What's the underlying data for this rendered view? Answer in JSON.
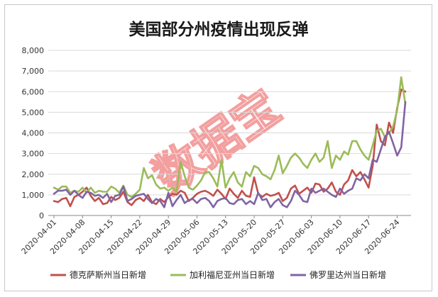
{
  "chart_data": {
    "type": "line",
    "title": "美国部分州疫情出现反弹",
    "watermark": "数据宝",
    "ylim": [
      0,
      8000
    ],
    "y_ticks": [
      "0",
      "1,000",
      "2,000",
      "3,000",
      "4,000",
      "5,000",
      "6,000",
      "7,000",
      "8,000"
    ],
    "y_tick_values": [
      0,
      1000,
      2000,
      3000,
      4000,
      5000,
      6000,
      7000,
      8000
    ],
    "x_tick_labels": [
      "2020-04-01",
      "2020-04-08",
      "2020-04-15",
      "2020-04-22",
      "2020-04-29",
      "2020-05-06",
      "2020-05-13",
      "2020-05-20",
      "2020-05-27",
      "2020-06-03",
      "2020-06-10",
      "2020-06-17",
      "2020-06-24"
    ],
    "x": [
      "2020-04-01",
      "2020-04-02",
      "2020-04-03",
      "2020-04-04",
      "2020-04-05",
      "2020-04-06",
      "2020-04-07",
      "2020-04-08",
      "2020-04-09",
      "2020-04-10",
      "2020-04-11",
      "2020-04-12",
      "2020-04-13",
      "2020-04-14",
      "2020-04-15",
      "2020-04-16",
      "2020-04-17",
      "2020-04-18",
      "2020-04-19",
      "2020-04-20",
      "2020-04-21",
      "2020-04-22",
      "2020-04-23",
      "2020-04-24",
      "2020-04-25",
      "2020-04-26",
      "2020-04-27",
      "2020-04-28",
      "2020-04-29",
      "2020-04-30",
      "2020-05-01",
      "2020-05-02",
      "2020-05-03",
      "2020-05-04",
      "2020-05-05",
      "2020-05-06",
      "2020-05-07",
      "2020-05-08",
      "2020-05-09",
      "2020-05-10",
      "2020-05-11",
      "2020-05-12",
      "2020-05-13",
      "2020-05-14",
      "2020-05-15",
      "2020-05-16",
      "2020-05-17",
      "2020-05-18",
      "2020-05-19",
      "2020-05-20",
      "2020-05-21",
      "2020-05-22",
      "2020-05-23",
      "2020-05-24",
      "2020-05-25",
      "2020-05-26",
      "2020-05-27",
      "2020-05-28",
      "2020-05-29",
      "2020-05-30",
      "2020-05-31",
      "2020-06-01",
      "2020-06-02",
      "2020-06-03",
      "2020-06-04",
      "2020-06-05",
      "2020-06-06",
      "2020-06-07",
      "2020-06-08",
      "2020-06-09",
      "2020-06-10",
      "2020-06-11",
      "2020-06-12",
      "2020-06-13",
      "2020-06-14",
      "2020-06-15",
      "2020-06-16",
      "2020-06-17",
      "2020-06-18",
      "2020-06-19",
      "2020-06-20",
      "2020-06-21",
      "2020-06-22",
      "2020-06-23",
      "2020-06-24",
      "2020-06-25",
      "2020-06-26"
    ],
    "series": [
      {
        "name": "德克萨斯州当日新增",
        "color": "#c0504d",
        "values": [
          700,
          650,
          800,
          850,
          450,
          900,
          1000,
          1150,
          1350,
          950,
          700,
          850,
          550,
          600,
          900,
          750,
          850,
          1150,
          650,
          500,
          750,
          850,
          700,
          1000,
          650,
          550,
          800,
          650,
          900,
          1050,
          1000,
          1200,
          1100,
          700,
          850,
          1050,
          1150,
          1200,
          1100,
          950,
          1250,
          1050,
          800,
          1300,
          1050,
          850,
          1200,
          950,
          900,
          1850,
          1050,
          900,
          1050,
          950,
          1000,
          1100,
          700,
          850,
          1300,
          1450,
          1050,
          1200,
          1350,
          1100,
          1550,
          1500,
          1150,
          1300,
          1600,
          1150,
          1000,
          1500,
          1700,
          2200,
          1900,
          2100,
          1750,
          1350,
          2400,
          4400,
          3600,
          3400,
          4500,
          4000,
          5200,
          6100,
          6000
        ]
      },
      {
        "name": "加利福尼亚州当日新增",
        "color": "#9bbb59",
        "values": [
          1350,
          1250,
          1400,
          1400,
          1100,
          1200,
          1150,
          1350,
          1100,
          1350,
          1100,
          1200,
          1150,
          1150,
          1400,
          1300,
          1100,
          1450,
          1000,
          900,
          1050,
          1250,
          2300,
          1800,
          1950,
          1500,
          1300,
          1350,
          1200,
          1350,
          1150,
          2600,
          1900,
          1350,
          1250,
          1450,
          1700,
          2100,
          2100,
          1800,
          1400,
          2700,
          1350,
          1800,
          2100,
          1600,
          1400,
          2100,
          1900,
          2400,
          2300,
          2000,
          1900,
          1750,
          2200,
          2900,
          2050,
          2400,
          2800,
          3000,
          2800,
          2500,
          2300,
          2700,
          3000,
          2600,
          2800,
          3600,
          2300,
          2900,
          2700,
          3100,
          2950,
          3600,
          3600,
          3200,
          2900,
          2700,
          3400,
          4100,
          4200,
          3800,
          4000,
          4300,
          5100,
          6700,
          5400
        ]
      },
      {
        "name": "佛罗里达州当日新增",
        "color": "#8064a2",
        "values": [
          1050,
          1200,
          1200,
          1250,
          1000,
          1200,
          1000,
          850,
          1150,
          1100,
          950,
          1000,
          850,
          1050,
          650,
          950,
          1000,
          1400,
          700,
          800,
          950,
          1000,
          1050,
          800,
          600,
          800,
          700,
          400,
          1100,
          450,
          750,
          1000,
          600,
          750,
          800,
          600,
          800,
          850,
          700,
          400,
          700,
          800,
          850,
          600,
          550,
          750,
          800,
          550,
          700,
          550,
          1100,
          750,
          800,
          400,
          650,
          800,
          500,
          400,
          700,
          1200,
          1000,
          700,
          650,
          1300,
          1100,
          1200,
          1300,
          1150,
          1000,
          900,
          1300,
          1050,
          1200,
          1300,
          1800,
          1700,
          2000,
          1800,
          2700,
          2600,
          3200,
          3800,
          4050,
          3500,
          2900,
          3300,
          5500
        ]
      }
    ]
  }
}
